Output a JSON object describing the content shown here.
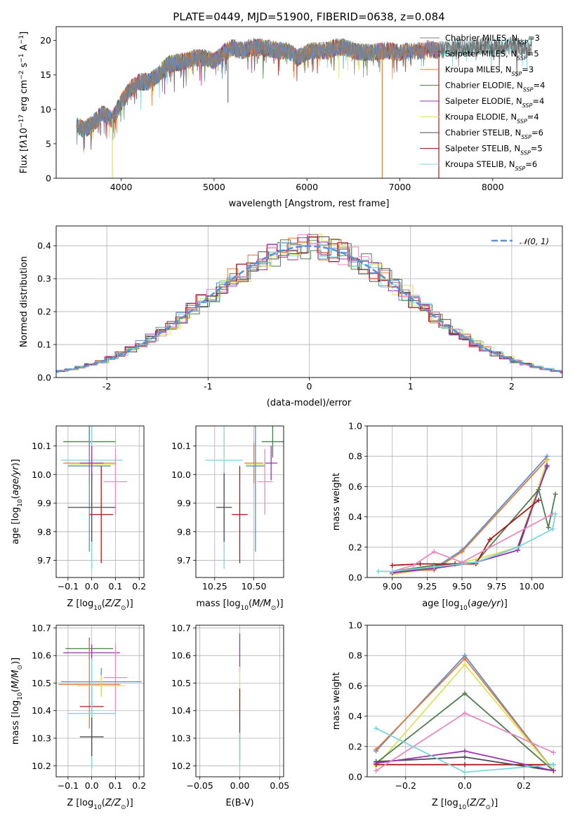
{
  "figure": {
    "title": "PLATE=0449, MJD=51900, FIBERID=0638, z=0.084"
  },
  "colors": {
    "Chabrier MILES": "#808080",
    "Salpeter MILES": "#5b8fd6",
    "Kroupa MILES": "#e07b39",
    "Chabrier ELODIE": "#4e7d4e",
    "Salpeter ELODIE": "#9b30b0",
    "Kroupa ELODIE": "#dbe35a",
    "Chabrier STELIB": "#4a4a4a",
    "Salpeter STELIB": "#aa1a1a",
    "Kroupa STELIB": "#7ad6dc",
    "Extra": "#e68abf"
  },
  "chart_data": [
    {
      "type": "line",
      "panel": "spectrum",
      "title": "PLATE=0449, MJD=51900, FIBERID=0638, z=0.084",
      "xlabel": "wavelength [Angstrom, rest frame]",
      "ylabel_parts": [
        "Flux [f",
        "λ",
        "10",
        "−17",
        " erg cm",
        "−2",
        " s",
        "−1",
        " A",
        "−1",
        "]"
      ],
      "xlim": [
        3300,
        8750
      ],
      "ylim": [
        0,
        22
      ],
      "xticks": [
        4000,
        5000,
        6000,
        7000,
        8000
      ],
      "yticks": [
        0,
        5,
        10,
        15,
        20
      ],
      "envelope": {
        "x": [
          3500,
          3600,
          3700,
          3800,
          3900,
          4000,
          4100,
          4200,
          4300,
          4400,
          4500,
          4600,
          4700,
          4800,
          4900,
          5000,
          5100,
          5200,
          5300,
          5400,
          5500,
          5600,
          5700,
          5800,
          5900,
          6000,
          6100,
          6200,
          6300,
          6400,
          6500,
          6600,
          6700,
          6800,
          6900,
          7000,
          7100,
          7200,
          7300,
          7400,
          7500,
          7600,
          7700,
          7800,
          7900,
          8000,
          8100,
          8200,
          8300,
          8400
        ],
        "y": [
          8.0,
          7.0,
          8.0,
          9.5,
          8.5,
          11.0,
          13.0,
          14.0,
          14.0,
          15.0,
          16.5,
          16.8,
          17.0,
          17.5,
          17.5,
          17.0,
          18.2,
          19.0,
          18.5,
          19.0,
          19.0,
          18.8,
          18.5,
          18.5,
          17.5,
          18.3,
          18.5,
          18.5,
          19.0,
          19.0,
          18.5,
          18.3,
          18.2,
          18.5,
          18.5,
          18.2,
          18.5,
          18.5,
          18.8,
          18.5,
          18.8,
          19.0,
          18.8,
          19.0,
          19.2,
          19.0,
          19.2,
          19.3,
          19.0,
          19.0
        ]
      },
      "dips": [
        {
          "x": 3905,
          "series": "Kroupa ELODIE"
        },
        {
          "x": 6810,
          "series": "Kroupa MILES"
        },
        {
          "x": 7420,
          "series": "Salpeter STELIB"
        }
      ],
      "legend_position": "right",
      "legend": [
        {
          "name": "Chabrier MILES",
          "nssp": "3"
        },
        {
          "name": "Salpeter MILES",
          "nssp": "5"
        },
        {
          "name": "Kroupa MILES",
          "nssp": "3"
        },
        {
          "name": "Chabrier ELODIE",
          "nssp": "4"
        },
        {
          "name": "Salpeter ELODIE",
          "nssp": "4"
        },
        {
          "name": "Kroupa ELODIE",
          "nssp": "4"
        },
        {
          "name": "Chabrier STELIB",
          "nssp": "6"
        },
        {
          "name": "Salpeter STELIB",
          "nssp": "5"
        },
        {
          "name": "Kroupa STELIB",
          "nssp": "6"
        }
      ],
      "legend_sub": "SSP"
    },
    {
      "type": "histogram",
      "panel": "residuals",
      "xlabel": "(data-model)/error",
      "ylabel": "Normed distribution",
      "xlim": [
        -2.5,
        2.5
      ],
      "ylim": [
        0,
        0.46
      ],
      "xticks": [
        -2,
        -1,
        0,
        1,
        2
      ],
      "yticks": [
        0.0,
        0.1,
        0.2,
        0.3,
        0.4
      ],
      "bin_width": 0.1,
      "reference_curve": {
        "label": "𝒩(0, 1)",
        "mean": 0,
        "sigma": 1,
        "style": "dashed",
        "color": "#5b8fd6"
      },
      "legend_position": "top-right"
    },
    {
      "type": "scatter",
      "panel": "age-vs-Z",
      "xlabel": "Z [log10(Z/Z⊙)]",
      "ylabel": "age  [log10(age/yr)]",
      "xlim": [
        -0.15,
        0.22
      ],
      "ylim": [
        9.64,
        10.17
      ],
      "xticks": [
        -0.1,
        0.0,
        0.1,
        0.2
      ],
      "xticklabels": [
        "−0.1",
        "0.0",
        "0.1",
        "0.2"
      ],
      "yticks": [
        9.7,
        9.8,
        9.9,
        10.0,
        10.1
      ],
      "points": [
        {
          "series": "Chabrier ELODIE",
          "x": -0.01,
          "xerr": 0.11,
          "y": 10.115,
          "yerr": 0.055
        },
        {
          "series": "Kroupa MILES",
          "x": -0.01,
          "xerr": 0.11,
          "y": 10.04,
          "yerr": 0.07
        },
        {
          "series": "Kroupa ELODIE",
          "x": 0.0,
          "xerr": 0.1,
          "y": 10.035,
          "yerr": 0.085
        },
        {
          "series": "Kroupa STELIB",
          "x": 0.0,
          "xerr": 0.13,
          "y": 10.05,
          "yerr": 0.38
        },
        {
          "series": "Salpeter MILES",
          "x": -0.01,
          "xerr": 0.09,
          "y": 10.03,
          "yerr": 0.3
        },
        {
          "series": "Salpeter ELODIE",
          "x": 0.0,
          "xerr": 0.05,
          "y": 10.04,
          "yerr": 0.06
        },
        {
          "series": "Extra",
          "x": 0.1,
          "xerr": 0.05,
          "y": 9.975,
          "yerr": 0.115
        },
        {
          "series": "Chabrier STELIB",
          "x": 0.0,
          "xerr": 0.1,
          "y": 9.885,
          "yerr": 0.12
        },
        {
          "series": "Salpeter STELIB",
          "x": 0.04,
          "xerr": 0.05,
          "y": 9.86,
          "yerr": 0.17
        }
      ]
    },
    {
      "type": "scatter",
      "panel": "age-vs-mass",
      "xlabel": "mass [log10(M/M⊙)]",
      "ylabel": "",
      "xlim": [
        10.13,
        10.69
      ],
      "ylim": [
        9.64,
        10.17
      ],
      "xticks": [
        10.25,
        10.5
      ],
      "xticklabels": [
        "10.25",
        "10.50"
      ],
      "yticks": [
        9.7,
        9.8,
        9.9,
        10.0,
        10.1
      ],
      "points": [
        {
          "series": "Chabrier ELODIE",
          "x": 10.62,
          "xerr": 0.07,
          "y": 10.115,
          "yerr": 0.055
        },
        {
          "series": "Kroupa MILES",
          "x": 10.5,
          "xerr": 0.06,
          "y": 10.04,
          "yerr": 0.07
        },
        {
          "series": "Kroupa ELODIE",
          "x": 10.51,
          "xerr": 0.06,
          "y": 10.035,
          "yerr": 0.085
        },
        {
          "series": "Kroupa STELIB",
          "x": 10.31,
          "xerr": 0.12,
          "y": 10.05,
          "yerr": 0.38
        },
        {
          "series": "Salpeter MILES",
          "x": 10.51,
          "xerr": 0.06,
          "y": 10.03,
          "yerr": 0.3
        },
        {
          "series": "Salpeter ELODIE",
          "x": 10.61,
          "xerr": 0.04,
          "y": 10.04,
          "yerr": 0.06
        },
        {
          "series": "Extra",
          "x": 10.57,
          "xerr": 0.05,
          "y": 9.975,
          "yerr": 0.115
        },
        {
          "series": "Chabrier STELIB",
          "x": 10.31,
          "xerr": 0.05,
          "y": 9.885,
          "yerr": 0.12
        },
        {
          "series": "Salpeter STELIB",
          "x": 10.41,
          "xerr": 0.05,
          "y": 9.86,
          "yerr": 0.17
        }
      ]
    },
    {
      "type": "line",
      "panel": "weight-vs-age",
      "xlabel": "age  [log10(age/yr)]",
      "ylabel": "mass weight",
      "xlim": [
        8.82,
        10.22
      ],
      "ylim": [
        0,
        1
      ],
      "xticks": [
        9.0,
        9.25,
        9.5,
        9.75,
        10.0
      ],
      "xticklabels": [
        "9.00",
        "9.25",
        "9.50",
        "9.75",
        "10.00"
      ],
      "yticks": [
        0.0,
        0.2,
        0.4,
        0.6,
        0.8,
        1.0
      ],
      "series": [
        {
          "name": "Salpeter MILES",
          "x": [
            9.0,
            9.3,
            9.5,
            10.11
          ],
          "y": [
            0.04,
            0.06,
            0.18,
            0.8
          ]
        },
        {
          "name": "Kroupa MILES",
          "x": [
            9.0,
            9.3,
            9.5,
            10.11
          ],
          "y": [
            0.04,
            0.05,
            0.17,
            0.78
          ]
        },
        {
          "name": "Kroupa ELODIE",
          "x": [
            9.0,
            9.3,
            9.6,
            9.9,
            10.11
          ],
          "y": [
            0.02,
            0.06,
            0.12,
            0.2,
            0.77
          ]
        },
        {
          "name": "Chabrier STELIB",
          "x": [
            9.0,
            9.3,
            9.6,
            9.9,
            10.11
          ],
          "y": [
            0.03,
            0.07,
            0.1,
            0.2,
            0.73
          ]
        },
        {
          "name": "Salpeter ELODIE",
          "x": [
            9.0,
            9.3,
            9.6,
            9.9,
            10.11
          ],
          "y": [
            0.03,
            0.06,
            0.1,
            0.18,
            0.74
          ]
        },
        {
          "name": "Chabrier ELODIE",
          "x": [
            9.0,
            9.3,
            9.6,
            10.05,
            10.12,
            10.17
          ],
          "y": [
            0.04,
            0.08,
            0.1,
            0.58,
            0.33,
            0.55
          ]
        },
        {
          "name": "Salpeter STELIB",
          "x": [
            9.0,
            9.2,
            9.45,
            9.6,
            9.7,
            10.05
          ],
          "y": [
            0.08,
            0.09,
            0.09,
            0.09,
            0.25,
            0.51
          ]
        },
        {
          "name": "Extra",
          "x": [
            9.0,
            9.15,
            9.3,
            9.5,
            10.15
          ],
          "y": [
            0.04,
            0.08,
            0.17,
            0.1,
            0.42
          ]
        },
        {
          "name": "Kroupa STELIB",
          "x": [
            8.9,
            9.0,
            9.3,
            9.6,
            9.9,
            10.15,
            10.17
          ],
          "y": [
            0.04,
            0.04,
            0.07,
            0.1,
            0.2,
            0.32,
            0.42
          ]
        }
      ]
    },
    {
      "type": "scatter",
      "panel": "mass-vs-Z",
      "xlabel": "Z [log10(Z/Z⊙)]",
      "ylabel": "mass [log10(M/M⊙)]",
      "xlim": [
        -0.15,
        0.22
      ],
      "ylim": [
        10.16,
        10.71
      ],
      "xticks": [
        -0.1,
        0.0,
        0.1,
        0.2
      ],
      "xticklabels": [
        "−0.1",
        "0.0",
        "0.1",
        "0.2"
      ],
      "yticks": [
        10.2,
        10.3,
        10.4,
        10.5,
        10.6,
        10.7
      ],
      "points": [
        {
          "series": "Chabrier ELODIE",
          "x": -0.01,
          "xerr": 0.1,
          "y": 10.625,
          "yerr": 0.04
        },
        {
          "series": "Salpeter ELODIE",
          "x": 0.0,
          "xerr": 0.12,
          "y": 10.61,
          "yerr": 0.03
        },
        {
          "series": "Extra",
          "x": 0.1,
          "xerr": 0.05,
          "y": 10.52,
          "yerr": 0.12
        },
        {
          "series": "Salpeter MILES",
          "x": 0.04,
          "xerr": 0.17,
          "y": 10.505,
          "yerr": 0.05
        },
        {
          "series": "Kroupa MILES",
          "x": -0.01,
          "xerr": 0.13,
          "y": 10.495,
          "yerr": 0.16
        },
        {
          "series": "Kroupa ELODIE",
          "x": 0.04,
          "xerr": 0.1,
          "y": 10.49,
          "yerr": 0.04
        },
        {
          "series": "Salpeter STELIB",
          "x": 0.0,
          "xerr": 0.05,
          "y": 10.415,
          "yerr": 0.07
        },
        {
          "series": "Kroupa STELIB",
          "x": 0.0,
          "xerr": 0.1,
          "y": 10.39,
          "yerr": 0.2
        },
        {
          "series": "Chabrier STELIB",
          "x": 0.0,
          "xerr": 0.05,
          "y": 10.305,
          "yerr": 0.07
        }
      ]
    },
    {
      "type": "scatter",
      "panel": "mass-vs-EBV",
      "xlabel": "E(B-V)",
      "ylabel": "",
      "xlim": [
        -0.055,
        0.055
      ],
      "ylim": [
        10.16,
        10.71
      ],
      "xticks": [
        -0.05,
        0.0,
        0.05
      ],
      "xticklabels": [
        "−0.05",
        "0.00",
        "0.05"
      ],
      "yticks": [
        10.2,
        10.3,
        10.4,
        10.5,
        10.6,
        10.7
      ],
      "points": [
        {
          "series": "Salpeter ELODIE",
          "x": 0.0,
          "xerr": 0,
          "y": 10.61,
          "yerr": 0.07
        },
        {
          "series": "Kroupa ELODIE",
          "x": 0.0,
          "xerr": 0,
          "y": 10.5,
          "yerr": 0.06
        },
        {
          "series": "Salpeter STELIB",
          "x": 0.0,
          "xerr": 0,
          "y": 10.43,
          "yerr": 0.05
        },
        {
          "series": "Chabrier STELIB",
          "x": 0.0,
          "xerr": 0,
          "y": 10.3,
          "yerr": 0.08
        },
        {
          "series": "Kroupa STELIB",
          "x": 0.0,
          "xerr": 0,
          "y": 10.25,
          "yerr": 0.07
        }
      ]
    },
    {
      "type": "line",
      "panel": "weight-vs-Z",
      "xlabel": "Z [log10(Z/Z⊙)]",
      "ylabel": "mass weight",
      "xlim": [
        -0.33,
        0.33
      ],
      "ylim": [
        0,
        1
      ],
      "xticks": [
        -0.2,
        0.0,
        0.2
      ],
      "xticklabels": [
        "−0.2",
        "0.0",
        "0.2"
      ],
      "yticks": [
        0.0,
        0.2,
        0.4,
        0.6,
        0.8,
        1.0
      ],
      "series": [
        {
          "name": "Salpeter MILES",
          "x": [
            -0.3,
            0.0,
            0.3
          ],
          "y": [
            0.17,
            0.8,
            0.04
          ]
        },
        {
          "name": "Kroupa MILES",
          "x": [
            -0.3,
            0.0,
            0.3
          ],
          "y": [
            0.18,
            0.78,
            0.04
          ]
        },
        {
          "name": "Kroupa ELODIE",
          "x": [
            -0.3,
            0.0,
            0.3
          ],
          "y": [
            0.07,
            0.74,
            0.04
          ]
        },
        {
          "name": "Chabrier ELODIE",
          "x": [
            -0.3,
            0.0,
            0.3
          ],
          "y": [
            0.09,
            0.55,
            0.04
          ]
        },
        {
          "name": "Salpeter STELIB",
          "x": [
            -0.3,
            0.0,
            0.3
          ],
          "y": [
            0.08,
            0.08,
            0.08
          ]
        },
        {
          "name": "Chabrier STELIB",
          "x": [
            -0.3,
            0.0,
            0.3
          ],
          "y": [
            0.1,
            0.13,
            0.04
          ]
        },
        {
          "name": "Salpeter ELODIE",
          "x": [
            -0.3,
            0.0,
            0.3
          ],
          "y": [
            0.09,
            0.17,
            0.04
          ]
        },
        {
          "name": "Extra",
          "x": [
            -0.3,
            0.0,
            0.3
          ],
          "y": [
            0.04,
            0.42,
            0.16
          ]
        },
        {
          "name": "Kroupa STELIB",
          "x": [
            -0.3,
            0.0,
            0.3
          ],
          "y": [
            0.32,
            0.03,
            0.08
          ]
        }
      ]
    }
  ]
}
